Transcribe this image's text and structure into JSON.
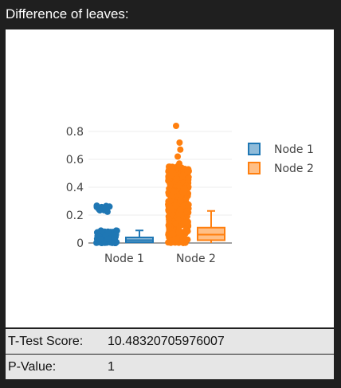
{
  "panel": {
    "title": "Difference of leaves:"
  },
  "stats": [
    {
      "label": "T-Test Score:",
      "value": "10.48320705976007"
    },
    {
      "label": "P-Value:",
      "value": "1"
    }
  ],
  "chart_data": {
    "type": "box",
    "title": "",
    "xlabel": "",
    "ylabel": "",
    "ylim": [
      0,
      0.85
    ],
    "yticks": [
      0,
      0.2,
      0.4,
      0.6,
      0.8
    ],
    "ytick_labels": [
      "0",
      "0.2",
      "0.4",
      "0.6",
      "0.8"
    ],
    "categories": [
      "Node 1",
      "Node 2"
    ],
    "grid": true,
    "legend_position": "right",
    "series": [
      {
        "name": "Node 1",
        "color": "#1f77b4",
        "box": {
          "min": 0,
          "q1": 0.005,
          "median": 0.02,
          "q3": 0.04,
          "max": 0.09
        },
        "points_dense": [
          0.0,
          0.09
        ],
        "points_cluster": [
          0.22,
          0.27
        ]
      },
      {
        "name": "Node 2",
        "color": "#ff7f0e",
        "box": {
          "min": 0,
          "q1": 0.02,
          "median": 0.06,
          "q3": 0.11,
          "max": 0.23
        },
        "points_dense": [
          0.0,
          0.55
        ],
        "points_sparse": [
          0.57,
          0.62,
          0.67,
          0.72,
          0.84
        ]
      }
    ]
  }
}
